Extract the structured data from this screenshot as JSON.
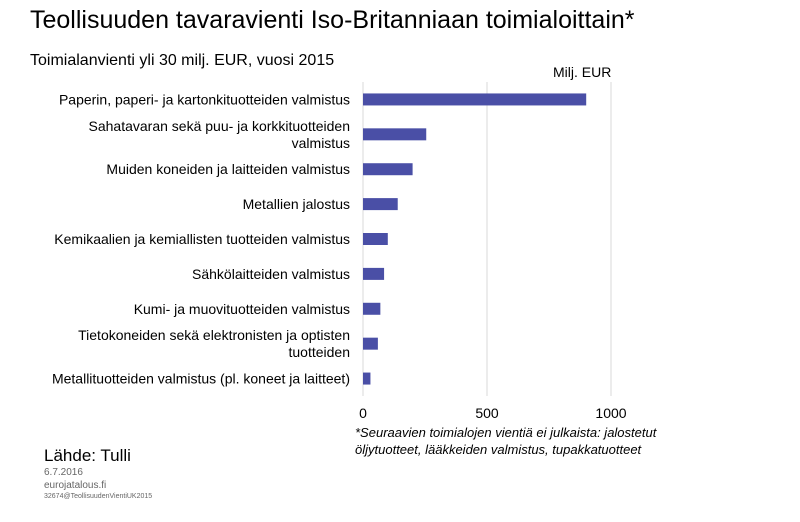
{
  "header": {
    "title": "Teollisuuden tavaravienti Iso-Britanniaan toimialoittain*",
    "subtitle": "Toimialanvienti yli 30 milj. EUR, vuosi 2015",
    "unit": "Milj. EUR"
  },
  "chart_data": {
    "type": "bar",
    "orientation": "horizontal",
    "categories": [
      [
        "Paperin, paperi- ja kartonkituotteiden valmistus"
      ],
      [
        "Sahatavaran sekä puu- ja korkkituotteiden",
        "valmistus"
      ],
      [
        "Muiden koneiden ja laitteiden valmistus"
      ],
      [
        "Metallien jalostus"
      ],
      [
        "Kemikaalien ja kemiallisten tuotteiden valmistus"
      ],
      [
        "Sähkölaitteiden valmistus"
      ],
      [
        "Kumi- ja muovituotteiden valmistus"
      ],
      [
        "Tietokoneiden sekä elektronisten ja optisten",
        "tuotteiden"
      ],
      [
        "Metallituotteiden valmistus (pl. koneet ja laitteet)"
      ]
    ],
    "values": [
      900,
      255,
      200,
      140,
      100,
      85,
      70,
      60,
      30
    ],
    "xlim": [
      0,
      1000
    ],
    "xticks": [
      "0",
      "500",
      "1000"
    ],
    "grid": true,
    "bar_color": "#4a4fa6",
    "grid_color": "#d9d9d9"
  },
  "footer": {
    "note_line1": "*Seuraavien toimialojen vientiä ei julkaista: jalostetut",
    "note_line2": "öljytuotteet, lääkkeiden valmistus, tupakkatuotteet",
    "source": "Lähde: Tulli",
    "date": "6.7.2016",
    "site": "eurojatalous.fi",
    "code": "32674@TeollisuudenVientiUK2015"
  }
}
